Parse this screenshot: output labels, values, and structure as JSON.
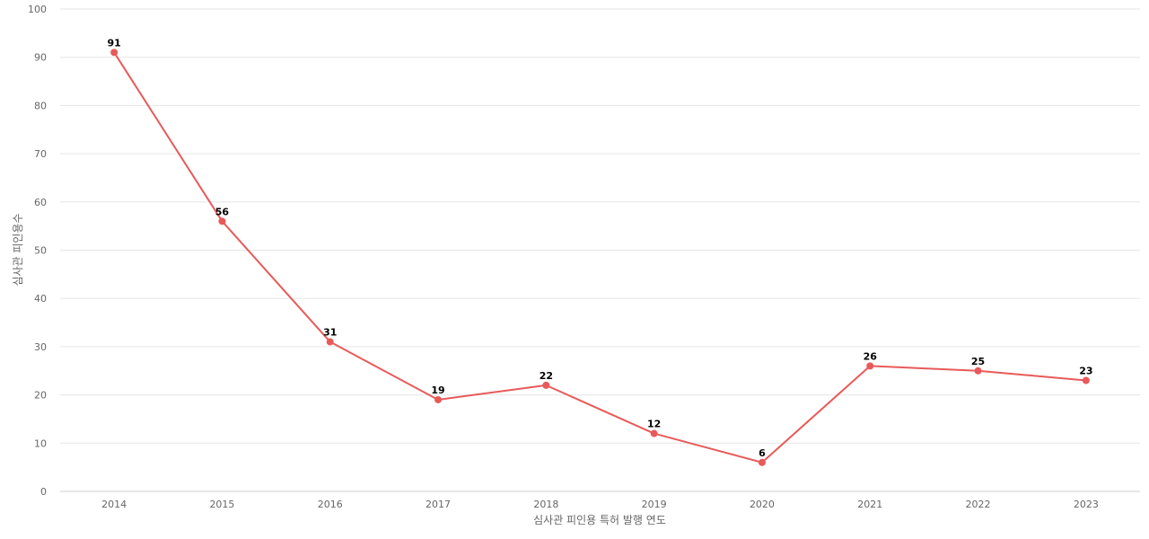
{
  "chart_data": {
    "type": "line",
    "xlabel": "심사관 피인용 특허 발행 연도",
    "ylabel": "심사관 피인용수",
    "ylim": [
      0,
      100
    ],
    "yticks": [
      0,
      10,
      20,
      30,
      40,
      50,
      60,
      70,
      80,
      90,
      100
    ],
    "grid": true,
    "categories": [
      "2014",
      "2015",
      "2016",
      "2017",
      "2018",
      "2019",
      "2020",
      "2021",
      "2022",
      "2023"
    ],
    "series": [
      {
        "values": [
          91,
          56,
          31,
          19,
          22,
          12,
          6,
          26,
          25,
          23
        ],
        "color": "#e85a5a"
      }
    ]
  }
}
